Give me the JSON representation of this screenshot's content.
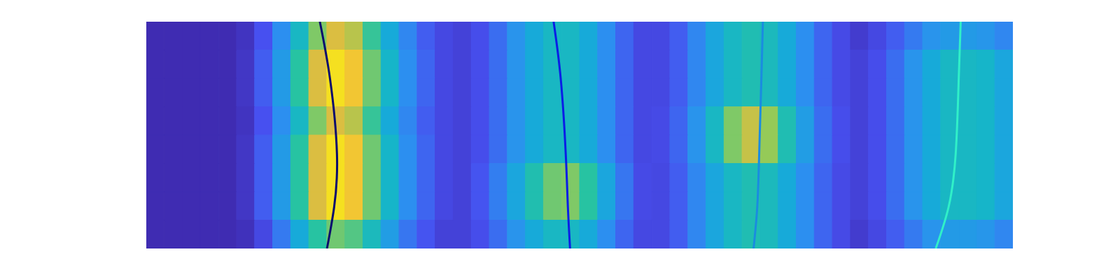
{
  "chart_data": {
    "type": "heatmap",
    "xlim": [
      0,
      4
    ],
    "ylim": [
      0,
      1
    ],
    "tick_labels": false,
    "cells": {
      "zlim": [
        0,
        1
      ],
      "rows": [
        [
          0.02,
          0.02,
          0.02,
          0.02,
          0.02,
          0.05,
          0.15,
          0.3,
          0.5,
          0.72,
          0.85,
          0.8,
          0.62,
          0.42,
          0.28,
          0.18,
          0.12,
          0.1,
          0.14,
          0.22,
          0.32,
          0.42,
          0.5,
          0.5,
          0.42,
          0.3,
          0.2,
          0.12,
          0.12,
          0.18,
          0.28,
          0.4,
          0.5,
          0.55,
          0.52,
          0.42,
          0.3,
          0.2,
          0.13,
          0.08,
          0.12,
          0.18,
          0.25,
          0.32,
          0.35,
          0.35,
          0.33,
          0.28
        ],
        [
          0.02,
          0.02,
          0.02,
          0.02,
          0.02,
          0.06,
          0.18,
          0.35,
          0.6,
          0.85,
          0.95,
          0.9,
          0.7,
          0.48,
          0.3,
          0.2,
          0.12,
          0.1,
          0.14,
          0.22,
          0.32,
          0.42,
          0.5,
          0.5,
          0.42,
          0.3,
          0.2,
          0.12,
          0.12,
          0.18,
          0.28,
          0.4,
          0.5,
          0.55,
          0.52,
          0.42,
          0.3,
          0.2,
          0.13,
          0.1,
          0.14,
          0.22,
          0.32,
          0.42,
          0.5,
          0.5,
          0.48,
          0.4
        ],
        [
          0.02,
          0.02,
          0.02,
          0.02,
          0.02,
          0.06,
          0.18,
          0.35,
          0.6,
          0.85,
          0.95,
          0.9,
          0.7,
          0.48,
          0.3,
          0.2,
          0.12,
          0.1,
          0.14,
          0.22,
          0.32,
          0.42,
          0.5,
          0.5,
          0.42,
          0.3,
          0.2,
          0.12,
          0.12,
          0.18,
          0.28,
          0.4,
          0.5,
          0.55,
          0.52,
          0.42,
          0.3,
          0.2,
          0.13,
          0.1,
          0.14,
          0.22,
          0.32,
          0.42,
          0.5,
          0.5,
          0.48,
          0.4
        ],
        [
          0.02,
          0.02,
          0.02,
          0.02,
          0.02,
          0.05,
          0.15,
          0.3,
          0.5,
          0.72,
          0.85,
          0.8,
          0.62,
          0.42,
          0.28,
          0.18,
          0.12,
          0.1,
          0.14,
          0.22,
          0.32,
          0.42,
          0.5,
          0.5,
          0.42,
          0.3,
          0.2,
          0.12,
          0.13,
          0.2,
          0.32,
          0.5,
          0.72,
          0.82,
          0.75,
          0.55,
          0.36,
          0.22,
          0.14,
          0.1,
          0.14,
          0.22,
          0.32,
          0.42,
          0.5,
          0.5,
          0.48,
          0.4
        ],
        [
          0.02,
          0.02,
          0.02,
          0.02,
          0.02,
          0.06,
          0.18,
          0.35,
          0.6,
          0.85,
          0.95,
          0.9,
          0.7,
          0.48,
          0.3,
          0.2,
          0.12,
          0.1,
          0.14,
          0.22,
          0.32,
          0.42,
          0.5,
          0.5,
          0.42,
          0.3,
          0.2,
          0.12,
          0.13,
          0.2,
          0.32,
          0.5,
          0.72,
          0.82,
          0.75,
          0.55,
          0.36,
          0.22,
          0.14,
          0.1,
          0.14,
          0.22,
          0.32,
          0.42,
          0.5,
          0.5,
          0.48,
          0.4
        ],
        [
          0.02,
          0.02,
          0.02,
          0.02,
          0.02,
          0.06,
          0.18,
          0.35,
          0.6,
          0.85,
          0.95,
          0.9,
          0.7,
          0.48,
          0.3,
          0.2,
          0.12,
          0.1,
          0.16,
          0.26,
          0.4,
          0.56,
          0.7,
          0.72,
          0.6,
          0.4,
          0.24,
          0.13,
          0.12,
          0.18,
          0.28,
          0.4,
          0.5,
          0.55,
          0.52,
          0.42,
          0.3,
          0.2,
          0.13,
          0.1,
          0.14,
          0.22,
          0.32,
          0.42,
          0.5,
          0.5,
          0.48,
          0.4
        ],
        [
          0.02,
          0.02,
          0.02,
          0.02,
          0.02,
          0.06,
          0.18,
          0.35,
          0.6,
          0.85,
          0.95,
          0.9,
          0.7,
          0.48,
          0.3,
          0.2,
          0.12,
          0.1,
          0.16,
          0.26,
          0.4,
          0.56,
          0.7,
          0.72,
          0.6,
          0.4,
          0.24,
          0.13,
          0.12,
          0.18,
          0.28,
          0.4,
          0.5,
          0.55,
          0.52,
          0.42,
          0.3,
          0.2,
          0.13,
          0.1,
          0.14,
          0.22,
          0.32,
          0.42,
          0.5,
          0.5,
          0.48,
          0.4
        ],
        [
          0.02,
          0.02,
          0.02,
          0.02,
          0.02,
          0.04,
          0.12,
          0.25,
          0.42,
          0.6,
          0.7,
          0.66,
          0.52,
          0.36,
          0.24,
          0.16,
          0.1,
          0.1,
          0.14,
          0.22,
          0.32,
          0.42,
          0.5,
          0.5,
          0.42,
          0.3,
          0.2,
          0.12,
          0.12,
          0.18,
          0.28,
          0.4,
          0.5,
          0.55,
          0.52,
          0.42,
          0.3,
          0.2,
          0.13,
          0.08,
          0.12,
          0.18,
          0.25,
          0.32,
          0.35,
          0.35,
          0.33,
          0.28
        ]
      ]
    },
    "series": [
      {
        "type": "line",
        "color": "#0b0c6e",
        "x": [
          0.801,
          0.848,
          0.88,
          0.867,
          0.834
        ],
        "y": [
          1,
          0.748,
          0.418,
          0.182,
          0
        ]
      },
      {
        "type": "line",
        "color": "#0a1ee6",
        "x": [
          1.88,
          1.913,
          1.936,
          1.946,
          1.956
        ],
        "y": [
          1,
          0.748,
          0.418,
          0.182,
          0
        ]
      },
      {
        "type": "line",
        "color": "#1a8ce0",
        "x": [
          2.846,
          2.839,
          2.829,
          2.82,
          2.803
        ],
        "y": [
          1,
          0.748,
          0.418,
          0.182,
          0
        ]
      },
      {
        "type": "line",
        "color": "#30f0c8",
        "x": [
          3.759,
          3.75,
          3.736,
          3.703,
          3.644
        ],
        "y": [
          1,
          0.748,
          0.418,
          0.182,
          0
        ]
      }
    ]
  }
}
